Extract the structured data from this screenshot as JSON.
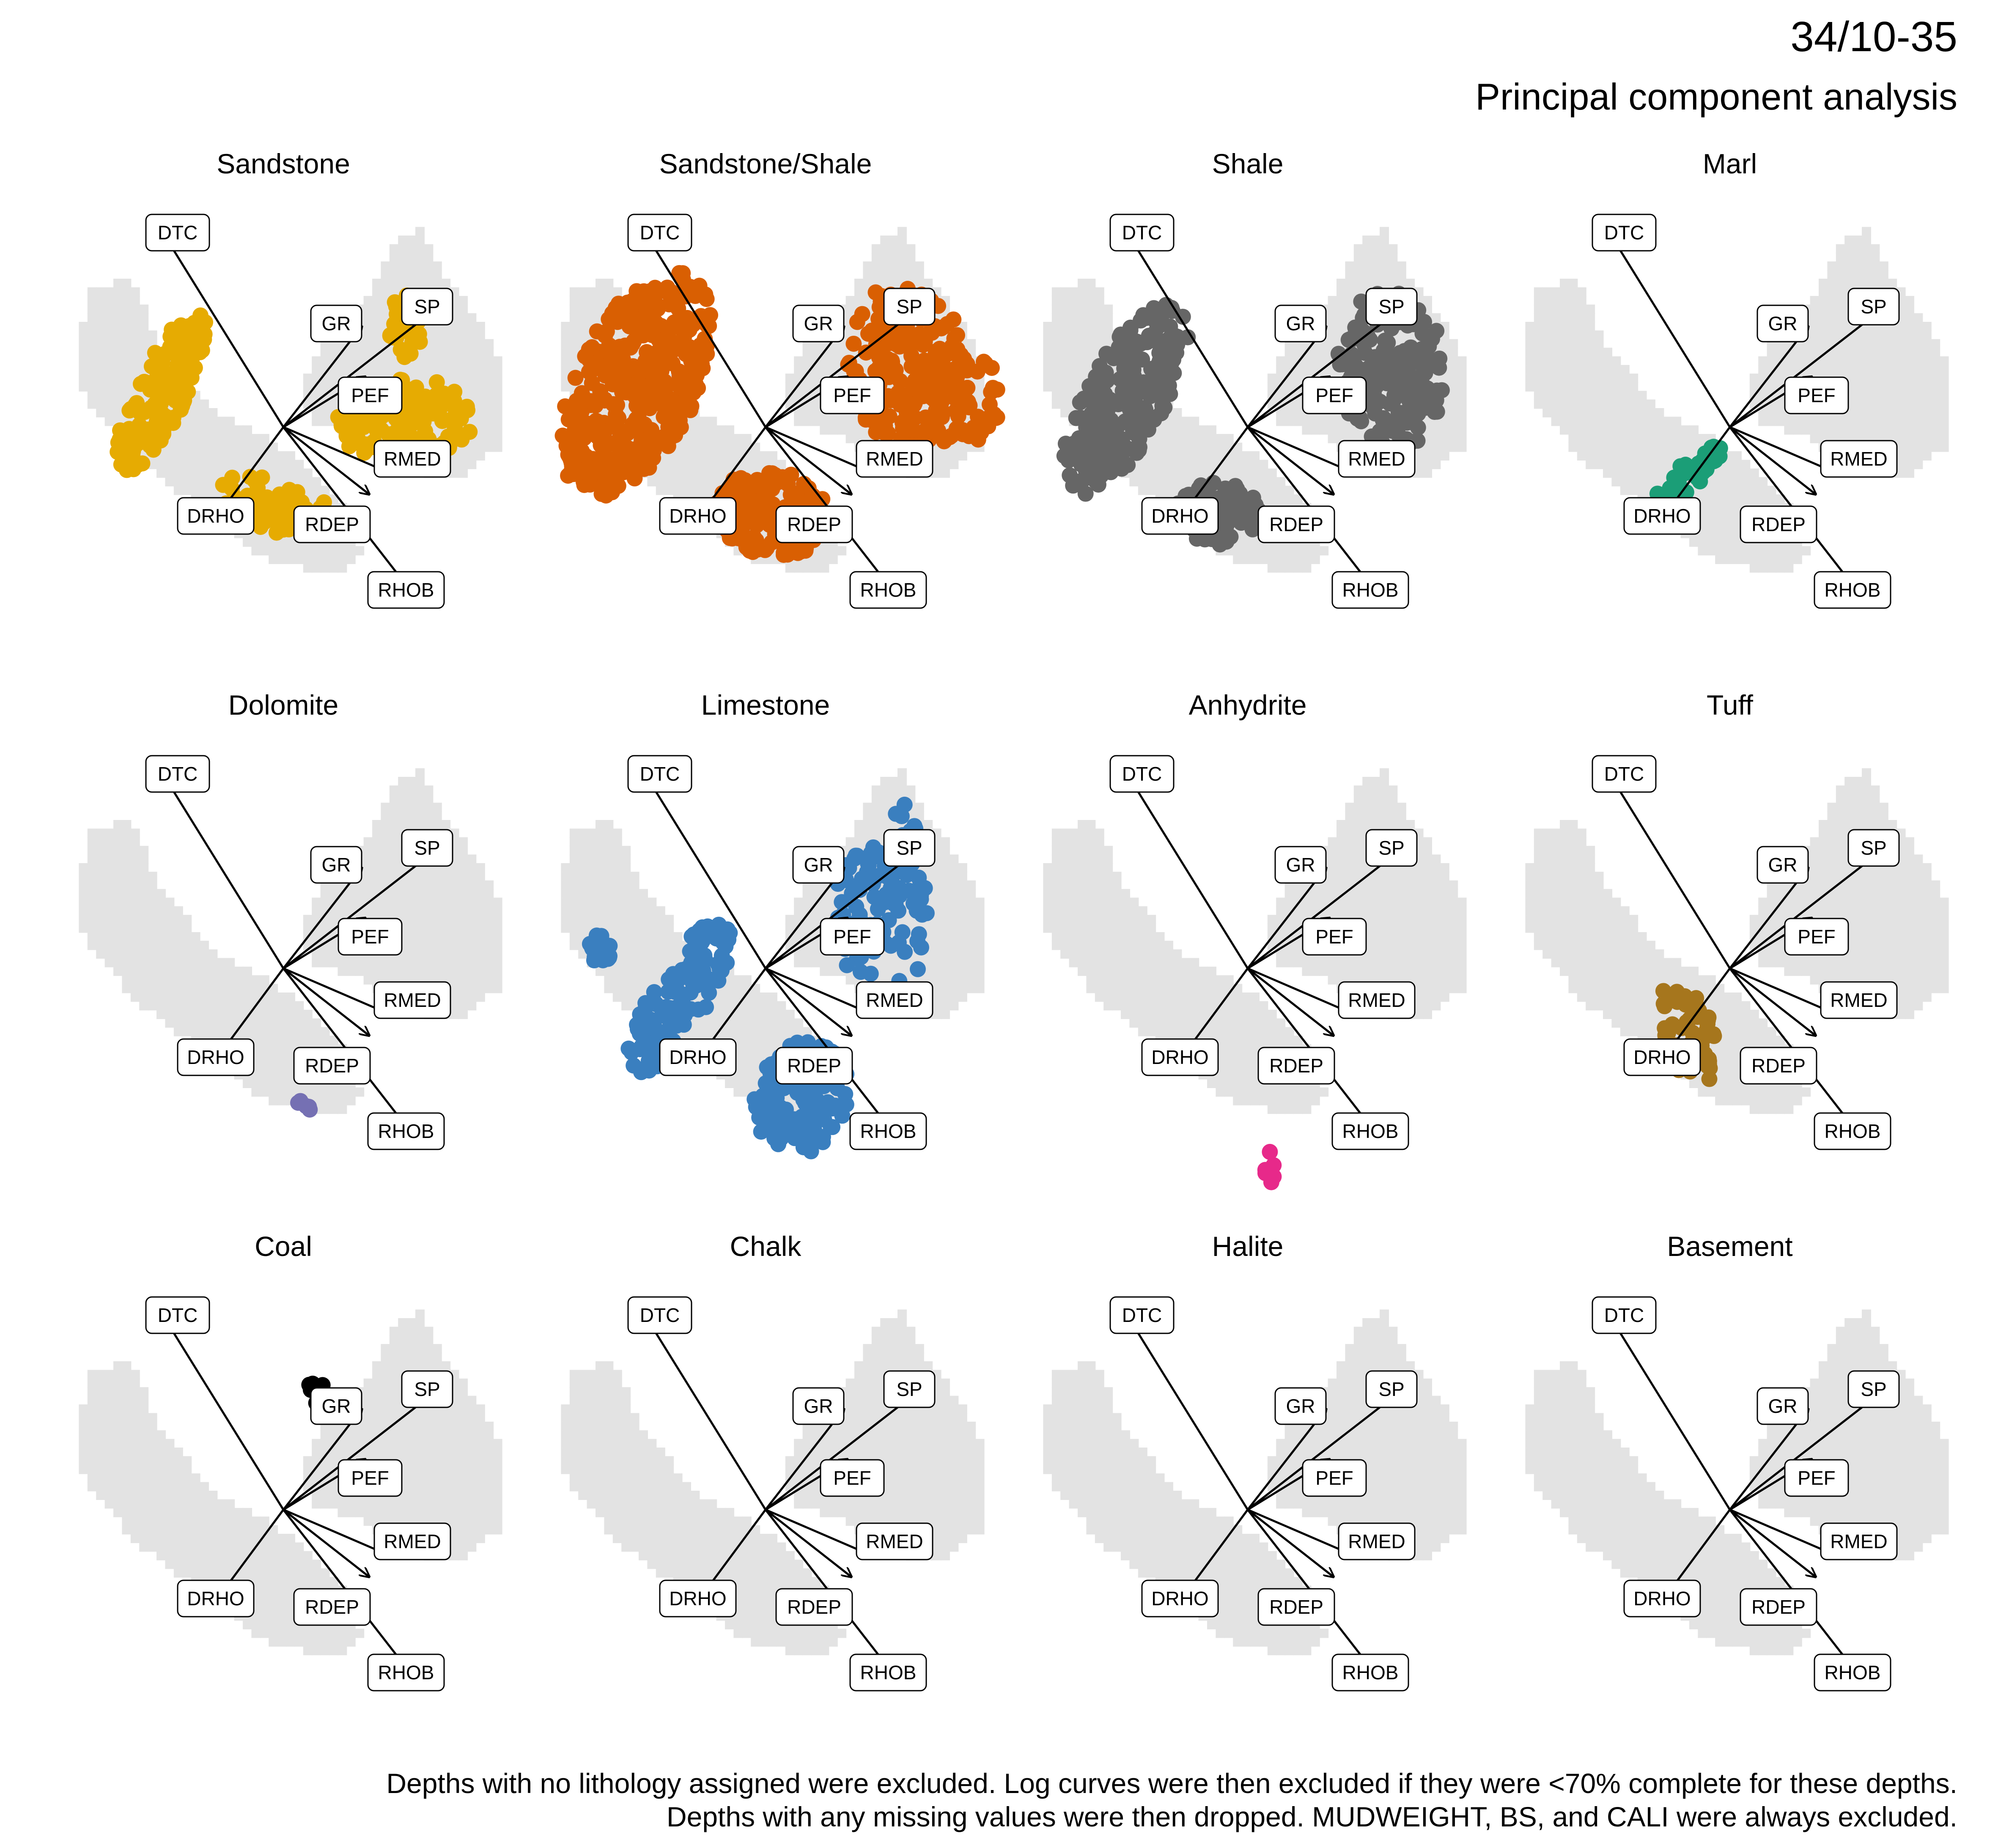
{
  "header": {
    "well": "34/10-35",
    "title": "Principal component analysis"
  },
  "footnote": {
    "line1": "Depths with no lithology assigned were excluded. Log curves were then excluded if they were <70% complete for these depths.",
    "line2": "Depths with any missing values were then dropped. MUDWEIGHT, BS, and CALI were always excluded."
  },
  "chart_data": {
    "type": "scatter",
    "variables": [
      {
        "name": "DTC",
        "loading": [
          -0.62,
          1.0
        ]
      },
      {
        "name": "GR",
        "loading": [
          0.42,
          0.54
        ]
      },
      {
        "name": "SP",
        "loading": [
          0.8,
          0.62
        ]
      },
      {
        "name": "PEF",
        "loading": [
          0.44,
          0.27
        ]
      },
      {
        "name": "RMED",
        "loading": [
          0.58,
          -0.25
        ]
      },
      {
        "name": "RDEP",
        "loading": [
          0.46,
          -0.36
        ]
      },
      {
        "name": "RHOB",
        "loading": [
          0.7,
          -0.9
        ]
      },
      {
        "name": "DRHO",
        "loading": [
          -0.4,
          -0.54
        ]
      }
    ],
    "background_color": "#e3e3e3",
    "panels": [
      {
        "title": "Sandstone",
        "color": "#E6AB02"
      },
      {
        "title": "Sandstone/Shale",
        "color": "#D95F02"
      },
      {
        "title": "Shale",
        "color": "#666666"
      },
      {
        "title": "Marl",
        "color": "#1B9E77"
      },
      {
        "title": "Dolomite",
        "color": "#7570B3"
      },
      {
        "title": "Limestone",
        "color": "#3A7FBF"
      },
      {
        "title": "Anhydrite",
        "color": "#E7298A"
      },
      {
        "title": "Tuff",
        "color": "#A6761D"
      },
      {
        "title": "Coal",
        "color": "#000000"
      },
      {
        "title": "Chalk",
        "color": "#E6AB02"
      },
      {
        "title": "Halite",
        "color": "#666666"
      },
      {
        "title": "Basement",
        "color": "#1B9E77"
      }
    ]
  }
}
